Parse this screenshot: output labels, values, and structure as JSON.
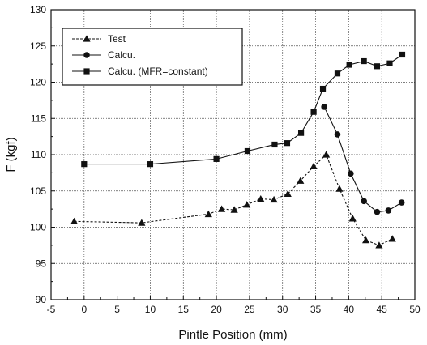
{
  "chart_data": {
    "type": "line",
    "title": "",
    "xlabel": "Pintle Position (mm)",
    "ylabel": "F (kgf)",
    "xlim": [
      -5,
      50
    ],
    "ylim": [
      90,
      130
    ],
    "x_ticks": [
      -5,
      0,
      5,
      10,
      15,
      20,
      25,
      30,
      35,
      40,
      45,
      50
    ],
    "y_ticks": [
      90,
      95,
      100,
      105,
      110,
      115,
      120,
      125,
      130
    ],
    "grid": true,
    "legend_position": "top-left",
    "series": [
      {
        "name": "Test",
        "marker": "triangle",
        "line_style": "dashed",
        "color": "#111111",
        "x": [
          -1.5,
          8.7,
          18.8,
          20.8,
          22.7,
          24.6,
          26.7,
          28.7,
          30.8,
          32.7,
          34.7,
          36.6,
          38.6,
          40.6,
          42.6,
          44.6,
          46.6
        ],
        "y": [
          100.8,
          100.6,
          101.8,
          102.5,
          102.4,
          103.1,
          103.9,
          103.8,
          104.6,
          106.4,
          108.4,
          110.0,
          105.3,
          101.2,
          98.2,
          97.5,
          98.4
        ]
      },
      {
        "name": "Calcu.",
        "marker": "circle",
        "line_style": "solid",
        "color": "#111111",
        "x": [
          36.3,
          38.3,
          40.3,
          42.3,
          44.3,
          46.0,
          48.0
        ],
        "y": [
          116.6,
          112.8,
          107.4,
          103.6,
          102.1,
          102.3,
          103.4
        ]
      },
      {
        "name": "Calcu. (MFR=constant)",
        "marker": "square",
        "line_style": "solid",
        "color": "#111111",
        "x": [
          0.0,
          10.0,
          20.0,
          24.7,
          28.8,
          30.7,
          32.8,
          34.7,
          36.1,
          38.3,
          40.1,
          42.3,
          44.3,
          46.2,
          48.1
        ],
        "y": [
          108.7,
          108.7,
          109.4,
          110.5,
          111.4,
          111.6,
          113.0,
          115.9,
          119.1,
          121.2,
          122.4,
          122.9,
          122.2,
          122.6,
          123.8
        ]
      }
    ]
  }
}
